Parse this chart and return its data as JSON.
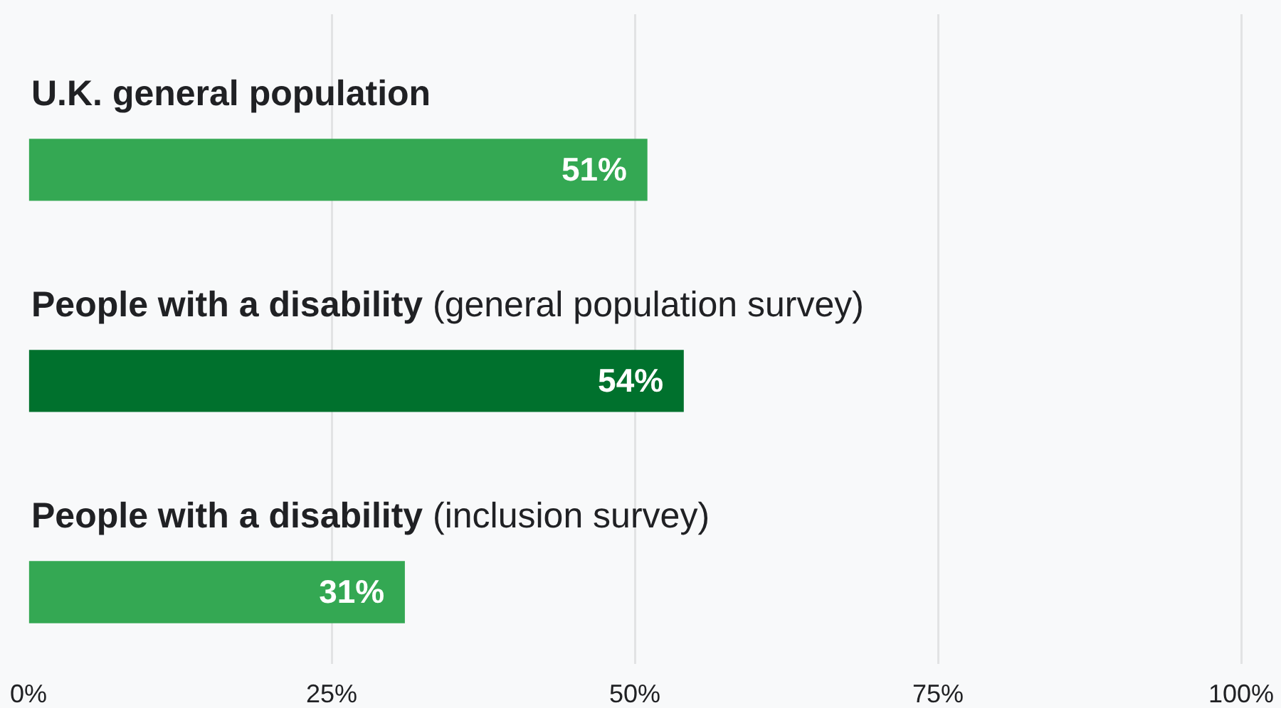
{
  "chart_data": {
    "type": "bar",
    "orientation": "horizontal",
    "categories": [
      "U.K. general population",
      "People with a disability (general population survey)",
      "People with a disability (inclusion survey)"
    ],
    "values": [
      51,
      54,
      31
    ],
    "colors": [
      "#34a853",
      "#00712d",
      "#34a853"
    ],
    "value_labels": [
      "51%",
      "54%",
      "31%"
    ],
    "xlim": [
      0,
      100
    ],
    "xticks": [
      {
        "value": 0,
        "label": "0%"
      },
      {
        "value": 25,
        "label": "25%"
      },
      {
        "value": 50,
        "label": "50%"
      },
      {
        "value": 75,
        "label": "75%"
      },
      {
        "value": 100,
        "label": "100%"
      }
    ],
    "grid": "x",
    "legend": false
  }
}
